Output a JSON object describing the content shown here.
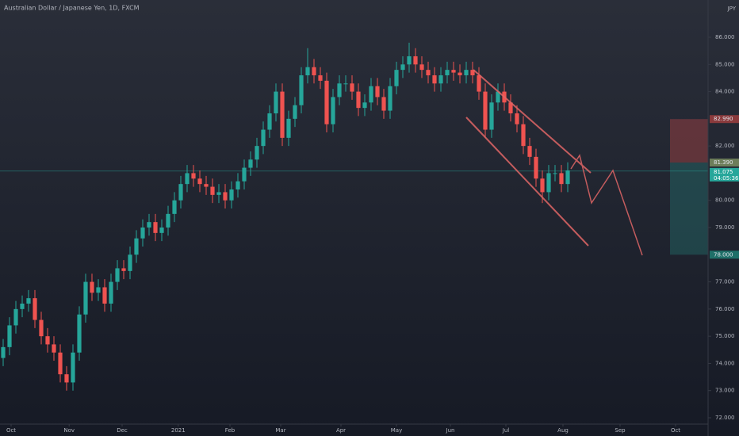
{
  "chart_data": {
    "type": "candlestick",
    "title": "Australian Dollar / Japanese Yen, 1D, FXCM",
    "currency": "JPY",
    "colors": {
      "up": "#26a69a",
      "down": "#ef5350"
    },
    "xlim": [
      -0.5,
      110.75
    ],
    "ylim": [
      71.9125,
      87.371
    ],
    "xticks": [
      {
        "value": 1.25,
        "label": "Oct"
      },
      {
        "value": 10.4,
        "label": "Nov"
      },
      {
        "value": 18.75,
        "label": "Dec"
      },
      {
        "value": 27.6,
        "label": "2021"
      },
      {
        "value": 35.75,
        "label": "Feb"
      },
      {
        "value": 43.75,
        "label": "Mar"
      },
      {
        "value": 53.25,
        "label": "Apr"
      },
      {
        "value": 62,
        "label": "May"
      },
      {
        "value": 70.5,
        "label": "Jun"
      },
      {
        "value": 79.25,
        "label": "Jul"
      },
      {
        "value": 88.25,
        "label": "Aug"
      },
      {
        "value": 97.25,
        "label": "Sep"
      },
      {
        "value": 106,
        "label": "Oct"
      }
    ],
    "yticks": [
      {
        "value": 86,
        "label": "86.000"
      },
      {
        "value": 85,
        "label": "85.000"
      },
      {
        "value": 84,
        "label": "84.000"
      },
      {
        "value": 82,
        "label": "82.000"
      },
      {
        "value": 80,
        "label": "80.000"
      },
      {
        "value": 79,
        "label": "79.000"
      },
      {
        "value": 77,
        "label": "77.000"
      },
      {
        "value": 76,
        "label": "76.000"
      },
      {
        "value": 75,
        "label": "75.000"
      },
      {
        "value": 74,
        "label": "74.000"
      },
      {
        "value": 73,
        "label": "73.000"
      },
      {
        "value": 72,
        "label": "72.000"
      }
    ],
    "open": [
      74.2,
      74.6,
      75.4,
      76.0,
      76.2,
      76.4,
      75.6,
      75.0,
      74.7,
      74.4,
      73.6,
      73.3,
      74.4,
      75.8,
      77.0,
      76.6,
      76.8,
      76.2,
      77.0,
      77.5,
      77.4,
      78.0,
      78.6,
      79.0,
      79.2,
      78.8,
      79.0,
      79.5,
      80.0,
      80.6,
      81.0,
      80.8,
      80.6,
      80.5,
      80.2,
      80.3,
      80.0,
      80.4,
      80.7,
      81.2,
      81.5,
      82.0,
      82.6,
      83.2,
      84.0,
      82.3,
      83.0,
      83.5,
      84.6,
      84.9,
      84.6,
      84.4,
      82.8,
      83.8,
      84.3,
      84.3,
      84.0,
      83.4,
      83.6,
      84.2,
      83.8,
      83.3,
      84.2,
      84.8,
      85.0,
      85.3,
      85.0,
      84.8,
      84.6,
      84.3,
      84.6,
      84.8,
      84.7,
      84.6,
      84.8,
      84.6,
      84.0,
      82.6,
      83.6,
      84.0,
      83.6,
      83.2,
      82.8,
      82.0,
      81.6,
      80.8,
      80.3,
      81.0,
      81.0,
      80.6
    ],
    "high": [
      74.9,
      75.7,
      76.3,
      76.5,
      76.7,
      76.7,
      75.9,
      75.3,
      75.0,
      74.7,
      73.9,
      74.7,
      76.1,
      77.3,
      77.3,
      77.1,
      77.1,
      77.3,
      77.8,
      77.8,
      78.3,
      78.9,
      79.3,
      79.5,
      79.5,
      79.3,
      79.8,
      80.3,
      80.9,
      81.3,
      81.3,
      81.1,
      80.9,
      80.8,
      80.6,
      80.6,
      80.7,
      81.0,
      81.5,
      81.8,
      82.3,
      82.9,
      83.5,
      84.3,
      84.3,
      83.3,
      83.8,
      84.9,
      85.6,
      85.2,
      84.9,
      84.7,
      84.1,
      84.6,
      84.6,
      84.6,
      84.3,
      83.9,
      84.5,
      84.5,
      84.1,
      84.5,
      85.1,
      85.3,
      85.8,
      85.6,
      85.3,
      85.1,
      84.9,
      84.9,
      85.1,
      85.1,
      85.0,
      85.1,
      85.1,
      84.9,
      84.3,
      83.9,
      84.3,
      84.3,
      83.9,
      83.5,
      83.1,
      82.3,
      81.9,
      81.1,
      81.3,
      81.3,
      81.3,
      81.4
    ],
    "low": [
      73.9,
      74.3,
      75.1,
      75.7,
      75.9,
      75.3,
      74.7,
      74.4,
      74.1,
      73.3,
      73.0,
      73.0,
      74.1,
      75.5,
      76.3,
      76.3,
      75.9,
      75.9,
      76.7,
      77.1,
      77.1,
      77.7,
      78.3,
      78.7,
      78.5,
      78.5,
      78.7,
      79.2,
      79.7,
      80.3,
      80.5,
      80.3,
      80.2,
      79.9,
      79.9,
      79.7,
      79.7,
      80.1,
      80.4,
      80.9,
      81.2,
      81.7,
      82.3,
      82.9,
      82.0,
      82.0,
      82.7,
      83.2,
      84.3,
      84.3,
      84.1,
      82.5,
      82.5,
      83.5,
      84.0,
      83.7,
      83.1,
      83.1,
      83.3,
      83.5,
      83.0,
      83.0,
      83.9,
      84.5,
      84.7,
      84.7,
      84.5,
      84.3,
      84.0,
      84.0,
      84.3,
      84.4,
      84.3,
      84.3,
      84.3,
      83.7,
      82.3,
      82.3,
      83.3,
      83.3,
      82.9,
      82.5,
      81.7,
      81.3,
      80.5,
      79.9,
      80.0,
      80.7,
      80.3,
      80.3
    ],
    "close": [
      74.6,
      75.4,
      76.0,
      76.2,
      76.4,
      75.6,
      75.0,
      74.7,
      74.4,
      73.6,
      73.3,
      74.4,
      75.8,
      77.0,
      76.6,
      76.8,
      76.2,
      77.0,
      77.5,
      77.4,
      78.0,
      78.6,
      79.0,
      79.2,
      78.8,
      79.0,
      79.5,
      80.0,
      80.6,
      81.0,
      80.8,
      80.6,
      80.5,
      80.2,
      80.3,
      80.0,
      80.4,
      80.7,
      81.2,
      81.5,
      82.0,
      82.6,
      83.2,
      84.0,
      82.3,
      83.0,
      83.5,
      84.6,
      84.9,
      84.6,
      84.4,
      82.8,
      83.8,
      84.3,
      84.3,
      84.0,
      83.4,
      83.6,
      84.2,
      83.8,
      83.3,
      84.2,
      84.8,
      85.0,
      85.3,
      85.0,
      84.8,
      84.6,
      84.3,
      84.6,
      84.8,
      84.7,
      84.6,
      84.8,
      84.6,
      84.0,
      82.6,
      83.6,
      84.0,
      83.6,
      83.2,
      82.8,
      82.0,
      81.6,
      80.8,
      80.3,
      81.0,
      81.0,
      80.6,
      81.1
    ],
    "current_price": {
      "value": 81.075,
      "label": "81.075"
    },
    "countdown": "04:05:36",
    "position": {
      "stop": {
        "value": 82.99,
        "label": "82.990"
      },
      "entry": {
        "value": 81.39,
        "label": "81.390"
      },
      "target": {
        "value": 78.0,
        "label": "78.000"
      }
    }
  }
}
